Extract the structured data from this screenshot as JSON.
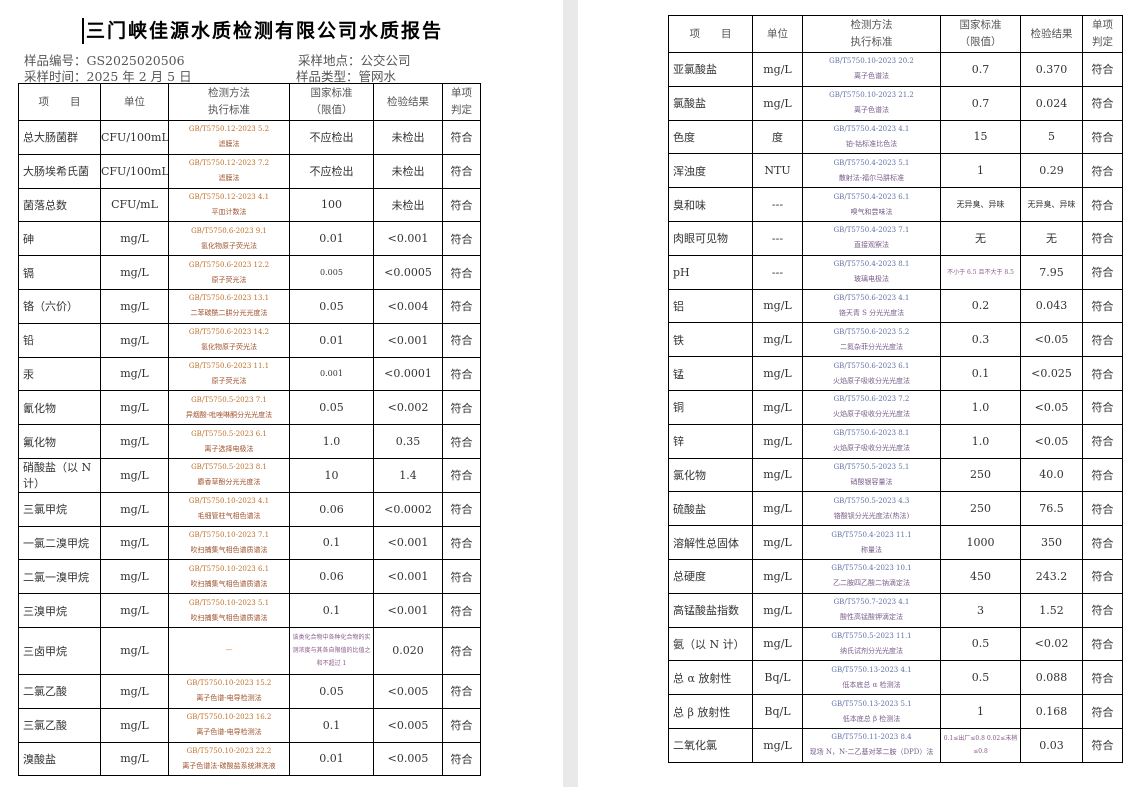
{
  "title": "三门峡佳源水质检测有限公司水质报告",
  "meta": {
    "sample_no": "样品编号：GS2025020506",
    "sample_place": "采样地点：公交公司",
    "sample_time": "采样时间：2025 年 2 月 5 日",
    "sample_type": "样品类型：管网水"
  },
  "headers": [
    "项　　目",
    "单位",
    "检测方法",
    "执行标准",
    "国家标准",
    "（限值）",
    "检验结果",
    "单项",
    "判定"
  ],
  "left_rows": [
    {
      "item": "总大肠菌群",
      "unit": "CFU/100mL",
      "code": "GB/T5750.12-2023 5.2",
      "method": "滤膜法",
      "limit": "不应检出",
      "result": "未检出",
      "judge": "符合"
    },
    {
      "item": "大肠埃希氏菌",
      "unit": "CFU/100mL",
      "code": "GB/T5750.12-2023 7.2",
      "method": "滤膜法",
      "limit": "不应检出",
      "result": "未检出",
      "judge": "符合"
    },
    {
      "item": "菌落总数",
      "unit": "CFU/mL",
      "code": "GB/T5750.12-2023 4.1",
      "method": "平皿计数法",
      "limit": "100",
      "result": "未检出",
      "judge": "符合"
    },
    {
      "item": "砷",
      "unit": "mg/L",
      "code": "GB/T5750.6-2023 9.1",
      "method": "氢化物原子荧光法",
      "limit": "0.01",
      "result": "<0.001",
      "judge": "符合"
    },
    {
      "item": "镉",
      "unit": "mg/L",
      "code": "GB/T5750.6-2023 12.2",
      "method": "原子荧光法",
      "limit": "0.005",
      "result": "<0.0005",
      "judge": "符合"
    },
    {
      "item": "铬（六价）",
      "unit": "mg/L",
      "code": "GB/T5750.6-2023 13.1",
      "method": "二苯碳酰二肼分光光度法",
      "limit": "0.05",
      "result": "<0.004",
      "judge": "符合"
    },
    {
      "item": "铅",
      "unit": "mg/L",
      "code": "GB/T5750.6-2023 14.2",
      "method": "氢化物原子荧光法",
      "limit": "0.01",
      "result": "<0.001",
      "judge": "符合"
    },
    {
      "item": "汞",
      "unit": "mg/L",
      "code": "GB/T5750.6-2023 11.1",
      "method": "原子荧光法",
      "limit": "0.001",
      "result": "<0.0001",
      "judge": "符合"
    },
    {
      "item": "氰化物",
      "unit": "mg/L",
      "code": "GB/T5750.5-2023 7.1",
      "method": "异烟酸-吡唑啉酮分光光度法",
      "limit": "0.05",
      "result": "<0.002",
      "judge": "符合"
    },
    {
      "item": "氟化物",
      "unit": "mg/L",
      "code": "GB/T5750.5-2023 6.1",
      "method": "离子选择电极法",
      "limit": "1.0",
      "result": "0.35",
      "judge": "符合"
    },
    {
      "item": "硝酸盐（以 N 计）",
      "unit": "mg/L",
      "code": "GB/T5750.5-2023 8.1",
      "method": "麝香草酚分光光度法",
      "limit": "10",
      "result": "1.4",
      "judge": "符合"
    },
    {
      "item": "三氯甲烷",
      "unit": "mg/L",
      "code": "GB/T5750.10-2023 4.1",
      "method": "毛细管柱气相色谱法",
      "limit": "0.06",
      "result": "<0.0002",
      "judge": "符合"
    },
    {
      "item": "一氯二溴甲烷",
      "unit": "mg/L",
      "code": "GB/T5750.10-2023 7.1",
      "method": "吹扫捕集气相色谱质谱法",
      "limit": "0.1",
      "result": "<0.001",
      "judge": "符合"
    },
    {
      "item": "二氯一溴甲烷",
      "unit": "mg/L",
      "code": "GB/T5750.10-2023 6.1",
      "method": "吹扫捕集气相色谱质谱法",
      "limit": "0.06",
      "result": "<0.001",
      "judge": "符合"
    },
    {
      "item": "三溴甲烷",
      "unit": "mg/L",
      "code": "GB/T5750.10-2023 5.1",
      "method": "吹扫捕集气相色谱质谱法",
      "limit": "0.1",
      "result": "<0.001",
      "judge": "符合"
    },
    {
      "item": "三卤甲烷",
      "unit": "mg/L",
      "code": "---",
      "method": "",
      "limit": "该类化合物中各种化合物的实测浓度与其各自限值的比值之和不超过 1",
      "result": "0.020",
      "judge": "符合"
    },
    {
      "item": "二氯乙酸",
      "unit": "mg/L",
      "code": "GB/T5750.10-2023 15.2",
      "method": "离子色谱-电导检测法",
      "limit": "0.05",
      "result": "<0.005",
      "judge": "符合"
    },
    {
      "item": "三氯乙酸",
      "unit": "mg/L",
      "code": "GB/T5750.10-2023 16.2",
      "method": "离子色谱-电导检测法",
      "limit": "0.1",
      "result": "<0.005",
      "judge": "符合"
    },
    {
      "item": "溴酸盐",
      "unit": "mg/L",
      "code": "GB/T5750.10-2023 22.2",
      "method": "离子色谱法-碳酸盐系统淋洗液",
      "limit": "0.01",
      "result": "<0.005",
      "judge": "符合"
    }
  ],
  "right_rows": [
    {
      "item": "亚氯酸盐",
      "unit": "mg/L",
      "code": "GB/T5750.10-2023 20.2",
      "method": "离子色谱法",
      "limit": "0.7",
      "result": "0.370",
      "judge": "符合"
    },
    {
      "item": "氯酸盐",
      "unit": "mg/L",
      "code": "GB/T5750.10-2023 21.2",
      "method": "离子色谱法",
      "limit": "0.7",
      "result": "0.024",
      "judge": "符合"
    },
    {
      "item": "色度",
      "unit": "度",
      "code": "GB/T5750.4-2023 4.1",
      "method": "铂-钴标准比色法",
      "limit": "15",
      "result": "5",
      "judge": "符合"
    },
    {
      "item": "浑浊度",
      "unit": "NTU",
      "code": "GB/T5750.4-2023 5.1",
      "method": "散射法-福尔马肼标准",
      "limit": "1",
      "result": "0.29",
      "judge": "符合"
    },
    {
      "item": "臭和味",
      "unit": "---",
      "code": "GB/T5750.4-2023 6.1",
      "method": "嗅气和尝味法",
      "limit": "无异臭、异味",
      "result": "无异臭、异味",
      "judge": "符合"
    },
    {
      "item": "肉眼可见物",
      "unit": "---",
      "code": "GB/T5750.4-2023 7.1",
      "method": "直接观察法",
      "limit": "无",
      "result": "无",
      "judge": "符合"
    },
    {
      "item": "pH",
      "unit": "---",
      "code": "GB/T5750.4-2023 8.1",
      "method": "玻璃电极法",
      "limit": "不小于 6.5 且不大于 8.5",
      "result": "7.95",
      "judge": "符合"
    },
    {
      "item": "铝",
      "unit": "mg/L",
      "code": "GB/T5750.6-2023 4.1",
      "method": "铬天青 S 分光光度法",
      "limit": "0.2",
      "result": "0.043",
      "judge": "符合"
    },
    {
      "item": "铁",
      "unit": "mg/L",
      "code": "GB/T5750.6-2023 5.2",
      "method": "二氮杂菲分光光度法",
      "limit": "0.3",
      "result": "<0.05",
      "judge": "符合"
    },
    {
      "item": "锰",
      "unit": "mg/L",
      "code": "GB/T5750.6-2023 6.1",
      "method": "火焰原子吸收分光光度法",
      "limit": "0.1",
      "result": "<0.025",
      "judge": "符合"
    },
    {
      "item": "铜",
      "unit": "mg/L",
      "code": "GB/T5750.6-2023 7.2",
      "method": "火焰原子吸收分光光度法",
      "limit": "1.0",
      "result": "<0.05",
      "judge": "符合"
    },
    {
      "item": "锌",
      "unit": "mg/L",
      "code": "GB/T5750.6-2023 8.1",
      "method": "火焰原子吸收分光光度法",
      "limit": "1.0",
      "result": "<0.05",
      "judge": "符合"
    },
    {
      "item": "氯化物",
      "unit": "mg/L",
      "code": "GB/T5750.5-2023 5.1",
      "method": "硝酸银容量法",
      "limit": "250",
      "result": "40.0",
      "judge": "符合"
    },
    {
      "item": "硫酸盐",
      "unit": "mg/L",
      "code": "GB/T5750.5-2023 4.3",
      "method": "铬酸钡分光光度法(热法)",
      "limit": "250",
      "result": "76.5",
      "judge": "符合"
    },
    {
      "item": "溶解性总固体",
      "unit": "mg/L",
      "code": "GB/T5750.4-2023 11.1",
      "method": "称量法",
      "limit": "1000",
      "result": "350",
      "judge": "符合"
    },
    {
      "item": "总硬度",
      "unit": "mg/L",
      "code": "GB/T5750.4-2023 10.1",
      "method": "乙二胺四乙酸二钠滴定法",
      "limit": "450",
      "result": "243.2",
      "judge": "符合"
    },
    {
      "item": "高锰酸盐指数",
      "unit": "mg/L",
      "code": "GB/T5750.7-2023 4.1",
      "method": "酸性高锰酸钾滴定法",
      "limit": "3",
      "result": "1.52",
      "judge": "符合"
    },
    {
      "item": "氨（以 N 计）",
      "unit": "mg/L",
      "code": "GB/T5750.5-2023 11.1",
      "method": "纳氏试剂分光光度法",
      "limit": "0.5",
      "result": "<0.02",
      "judge": "符合"
    },
    {
      "item": "总 α 放射性",
      "unit": "Bq/L",
      "code": "GB/T5750.13-2023 4.1",
      "method": "低本底总 α 检测法",
      "limit": "0.5",
      "result": "0.088",
      "judge": "符合"
    },
    {
      "item": "总 β 放射性",
      "unit": "Bq/L",
      "code": "GB/T5750.13-2023 5.1",
      "method": "低本底总 β 检测法",
      "limit": "1",
      "result": "0.168",
      "judge": "符合"
    },
    {
      "item": "二氧化氯",
      "unit": "mg/L",
      "code": "GB/T5750.11-2023 8.4",
      "method": "现场 N，N-二乙基对苯二胺（DPD）法",
      "limit": "0.1≤出厂≤0.8 0.02≤末梢≤0.8",
      "result": "0.03",
      "judge": "符合"
    }
  ]
}
